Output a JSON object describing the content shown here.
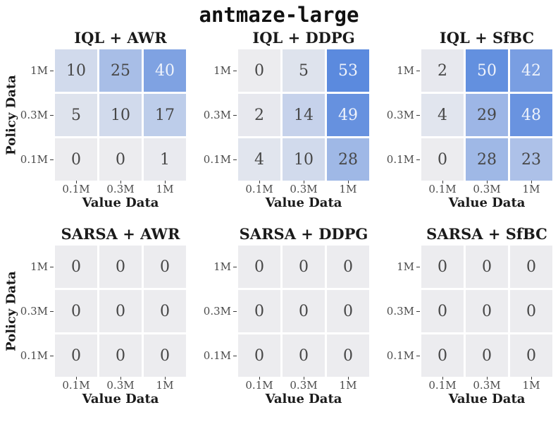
{
  "figure_title": "antmaze-large",
  "colors": {
    "colormap_low": "#ececef",
    "colormap_high": "#5b8ade",
    "cell_text_dark": "#474747",
    "cell_text_light": "#eff3fb",
    "tick_text": "#4b4b4b",
    "label_text": "#1a1a1a"
  },
  "chart_data": {
    "type": "heatmap",
    "title": "antmaze-large",
    "xlabel": "Value Data",
    "ylabel": "Policy Data",
    "x_tick_labels": [
      "0.1M",
      "0.3M",
      "1M"
    ],
    "y_tick_labels": [
      "1M",
      "0.3M",
      "0.1M"
    ],
    "vmin": 0,
    "vmax": 53,
    "light_text_threshold": 40,
    "legend": "none",
    "grid_layout": {
      "rows": 2,
      "cols": 3
    },
    "panels": [
      {
        "title": "IQL + AWR",
        "rows": [
          [
            10,
            25,
            40
          ],
          [
            5,
            10,
            17
          ],
          [
            0,
            0,
            1
          ]
        ]
      },
      {
        "title": "IQL + DDPG",
        "rows": [
          [
            0,
            5,
            53
          ],
          [
            2,
            14,
            49
          ],
          [
            4,
            10,
            28
          ]
        ]
      },
      {
        "title": "IQL + SfBC",
        "rows": [
          [
            2,
            50,
            42
          ],
          [
            4,
            29,
            48
          ],
          [
            0,
            28,
            23
          ]
        ]
      },
      {
        "title": "SARSA + AWR",
        "rows": [
          [
            0,
            0,
            0
          ],
          [
            0,
            0,
            0
          ],
          [
            0,
            0,
            0
          ]
        ]
      },
      {
        "title": "SARSA + DDPG",
        "rows": [
          [
            0,
            0,
            0
          ],
          [
            0,
            0,
            0
          ],
          [
            0,
            0,
            0
          ]
        ]
      },
      {
        "title": "SARSA + SfBC",
        "rows": [
          [
            0,
            0,
            0
          ],
          [
            0,
            0,
            0
          ],
          [
            0,
            0,
            0
          ]
        ]
      }
    ]
  }
}
